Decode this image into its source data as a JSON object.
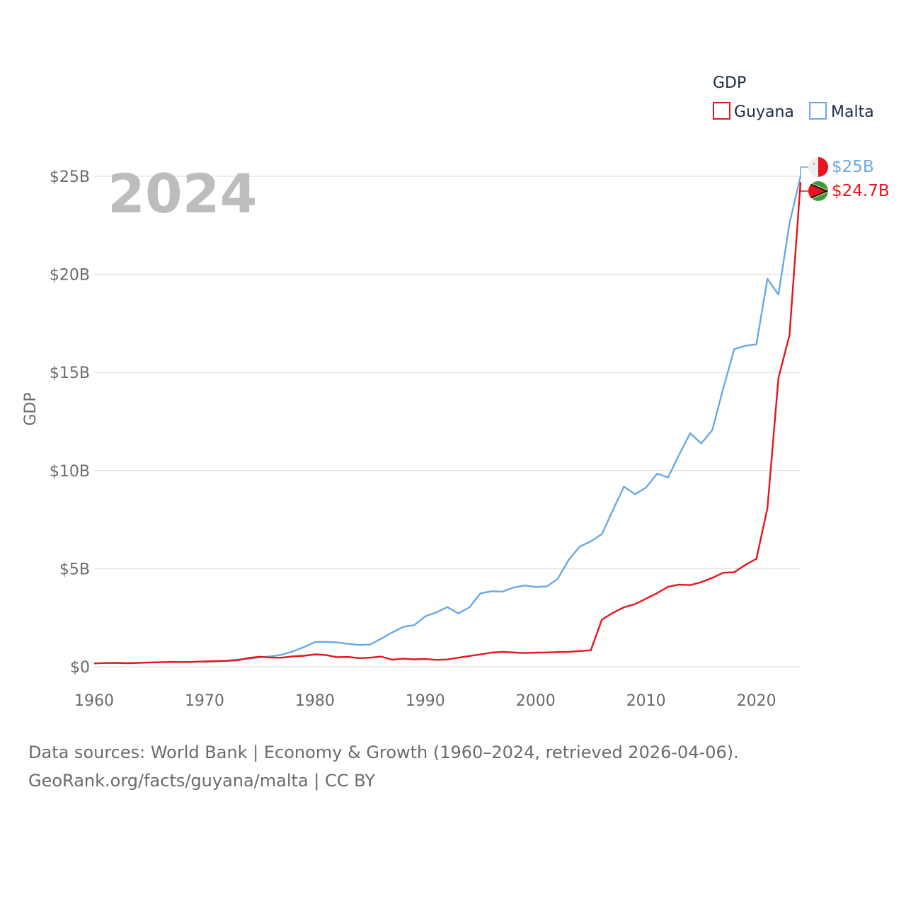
{
  "chart_data": {
    "type": "line",
    "title": "GDP",
    "year_label": "2024",
    "ylabel": "GDP",
    "xlabel": "",
    "xlim": [
      1960,
      2024
    ],
    "ylim": [
      0,
      25
    ],
    "x_ticks": [
      1960,
      1970,
      1980,
      1990,
      2000,
      2010,
      2020
    ],
    "x_tick_labels": [
      "1960",
      "1970",
      "1980",
      "1990",
      "2000",
      "2010",
      "2020"
    ],
    "y_ticks": [
      0,
      5,
      10,
      15,
      20,
      25
    ],
    "y_tick_labels": [
      "$0",
      "$5B",
      "$10B",
      "$15B",
      "$20B",
      "$25B"
    ],
    "legend": {
      "title": "GDP",
      "position": "top-right"
    },
    "series": [
      {
        "name": "Guyana",
        "color": "#e8141b",
        "unit": "billion USD",
        "end_label": "$24.7B",
        "points": [
          [
            1960,
            0.17
          ],
          [
            1961,
            0.19
          ],
          [
            1962,
            0.2
          ],
          [
            1963,
            0.18
          ],
          [
            1964,
            0.2
          ],
          [
            1965,
            0.22
          ],
          [
            1966,
            0.23
          ],
          [
            1967,
            0.25
          ],
          [
            1968,
            0.24
          ],
          [
            1969,
            0.25
          ],
          [
            1970,
            0.27
          ],
          [
            1971,
            0.29
          ],
          [
            1972,
            0.3
          ],
          [
            1973,
            0.33
          ],
          [
            1974,
            0.45
          ],
          [
            1975,
            0.51
          ],
          [
            1976,
            0.47
          ],
          [
            1977,
            0.46
          ],
          [
            1978,
            0.53
          ],
          [
            1979,
            0.56
          ],
          [
            1980,
            0.63
          ],
          [
            1981,
            0.6
          ],
          [
            1982,
            0.49
          ],
          [
            1983,
            0.5
          ],
          [
            1984,
            0.44
          ],
          [
            1985,
            0.46
          ],
          [
            1986,
            0.52
          ],
          [
            1987,
            0.36
          ],
          [
            1988,
            0.41
          ],
          [
            1989,
            0.38
          ],
          [
            1990,
            0.4
          ],
          [
            1991,
            0.35
          ],
          [
            1992,
            0.37
          ],
          [
            1993,
            0.46
          ],
          [
            1994,
            0.55
          ],
          [
            1995,
            0.63
          ],
          [
            1996,
            0.72
          ],
          [
            1997,
            0.76
          ],
          [
            1998,
            0.73
          ],
          [
            1999,
            0.7
          ],
          [
            2000,
            0.72
          ],
          [
            2001,
            0.73
          ],
          [
            2002,
            0.75
          ],
          [
            2003,
            0.76
          ],
          [
            2004,
            0.8
          ],
          [
            2005,
            0.84
          ],
          [
            2006,
            2.4
          ],
          [
            2007,
            2.75
          ],
          [
            2008,
            3.03
          ],
          [
            2009,
            3.19
          ],
          [
            2010,
            3.47
          ],
          [
            2011,
            3.75
          ],
          [
            2012,
            4.08
          ],
          [
            2013,
            4.19
          ],
          [
            2014,
            4.16
          ],
          [
            2015,
            4.31
          ],
          [
            2016,
            4.53
          ],
          [
            2017,
            4.79
          ],
          [
            2018,
            4.82
          ],
          [
            2019,
            5.19
          ],
          [
            2020,
            5.5
          ],
          [
            2021,
            8.07
          ],
          [
            2022,
            14.72
          ],
          [
            2023,
            16.9
          ],
          [
            2024,
            24.7
          ]
        ]
      },
      {
        "name": "Malta",
        "color": "#6aa8e6",
        "unit": "billion USD",
        "end_label": "$25B",
        "points": [
          [
            1970,
            0.25
          ],
          [
            1971,
            0.27
          ],
          [
            1972,
            0.31
          ],
          [
            1973,
            0.37
          ],
          [
            1974,
            0.4
          ],
          [
            1975,
            0.48
          ],
          [
            1976,
            0.53
          ],
          [
            1977,
            0.61
          ],
          [
            1978,
            0.78
          ],
          [
            1979,
            1.0
          ],
          [
            1980,
            1.26
          ],
          [
            1981,
            1.27
          ],
          [
            1982,
            1.24
          ],
          [
            1983,
            1.17
          ],
          [
            1984,
            1.11
          ],
          [
            1985,
            1.13
          ],
          [
            1986,
            1.43
          ],
          [
            1987,
            1.75
          ],
          [
            1988,
            2.03
          ],
          [
            1989,
            2.12
          ],
          [
            1990,
            2.57
          ],
          [
            1991,
            2.77
          ],
          [
            1992,
            3.04
          ],
          [
            1993,
            2.72
          ],
          [
            1994,
            3.03
          ],
          [
            1995,
            3.74
          ],
          [
            1996,
            3.85
          ],
          [
            1997,
            3.83
          ],
          [
            1998,
            4.04
          ],
          [
            1999,
            4.14
          ],
          [
            2000,
            4.07
          ],
          [
            2001,
            4.09
          ],
          [
            2002,
            4.48
          ],
          [
            2003,
            5.45
          ],
          [
            2004,
            6.13
          ],
          [
            2005,
            6.39
          ],
          [
            2006,
            6.76
          ],
          [
            2007,
            7.98
          ],
          [
            2008,
            9.18
          ],
          [
            2009,
            8.79
          ],
          [
            2010,
            9.13
          ],
          [
            2011,
            9.84
          ],
          [
            2012,
            9.65
          ],
          [
            2013,
            10.81
          ],
          [
            2014,
            11.9
          ],
          [
            2015,
            11.38
          ],
          [
            2016,
            12.06
          ],
          [
            2017,
            14.19
          ],
          [
            2018,
            16.19
          ],
          [
            2019,
            16.36
          ],
          [
            2020,
            16.43
          ],
          [
            2021,
            19.77
          ],
          [
            2022,
            18.97
          ],
          [
            2023,
            22.6
          ],
          [
            2024,
            25.0
          ]
        ]
      }
    ]
  },
  "footer": {
    "line1": "Data sources: World Bank | Economy & Growth (1960–2024, retrieved 2026-04-06).",
    "line2": "GeoRank.org/facts/guyana/malta | CC BY"
  }
}
